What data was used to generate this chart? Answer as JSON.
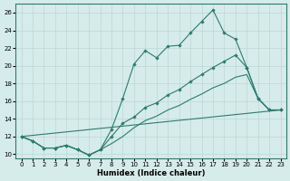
{
  "xlabel": "Humidex (Indice chaleur)",
  "background_color": "#d6ecea",
  "line_color": "#2d7b6e",
  "grid_color": "#b8d8d4",
  "xlim": [
    -0.5,
    23.5
  ],
  "ylim": [
    9.5,
    27
  ],
  "yticks": [
    10,
    12,
    14,
    16,
    18,
    20,
    22,
    24,
    26
  ],
  "xticks": [
    0,
    1,
    2,
    3,
    4,
    5,
    6,
    7,
    8,
    9,
    10,
    11,
    12,
    13,
    14,
    15,
    16,
    17,
    18,
    19,
    20,
    21,
    22,
    23
  ],
  "line1_x": [
    0,
    1,
    2,
    3,
    4,
    5,
    6,
    7,
    8,
    9,
    10,
    11,
    12,
    13,
    14,
    15,
    16,
    17,
    18,
    19,
    20,
    21,
    22,
    23
  ],
  "line1_y": [
    12,
    11.5,
    10.7,
    10.7,
    11.0,
    10.5,
    9.9,
    10.5,
    12.8,
    16.3,
    20.2,
    21.7,
    20.9,
    22.2,
    22.3,
    23.7,
    25.0,
    26.3,
    23.7,
    23.0,
    19.8,
    16.3,
    15.0,
    15.0
  ],
  "line2_x": [
    0,
    1,
    2,
    3,
    4,
    5,
    6,
    7,
    8,
    9,
    10,
    11,
    12,
    13,
    14,
    15,
    16,
    17,
    18,
    19,
    20,
    21,
    22,
    23
  ],
  "line2_y": [
    12,
    11.5,
    10.7,
    10.7,
    11.0,
    10.5,
    9.9,
    10.5,
    12.0,
    13.5,
    14.2,
    15.3,
    15.8,
    16.7,
    17.3,
    18.2,
    19.0,
    19.8,
    20.5,
    21.2,
    19.8,
    16.3,
    15.0,
    15.0
  ],
  "line3_x": [
    0,
    23
  ],
  "line3_y": [
    12,
    15.0
  ],
  "line4_x": [
    0,
    1,
    2,
    3,
    4,
    5,
    6,
    7,
    8,
    9,
    10,
    11,
    12,
    13,
    14,
    15,
    16,
    17,
    18,
    19,
    20,
    21,
    22,
    23
  ],
  "line4_y": [
    12,
    11.5,
    10.7,
    10.7,
    11.0,
    10.5,
    9.9,
    10.5,
    11.2,
    12.0,
    13.0,
    13.8,
    14.3,
    15.0,
    15.5,
    16.2,
    16.8,
    17.5,
    18.0,
    18.7,
    19.0,
    16.3,
    15.0,
    15.0
  ]
}
